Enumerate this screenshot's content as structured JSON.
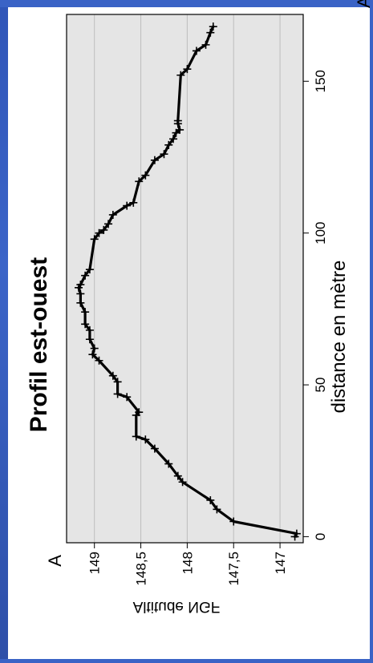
{
  "chart_data": {
    "type": "line",
    "title": "Profil est-ouest",
    "xlabel": "distance en mètre",
    "ylabel": "Altitude NGF",
    "start_label": "A",
    "end_label": "A'",
    "xlim": [
      -2,
      172
    ],
    "ylim": [
      146.75,
      149.3
    ],
    "xticks": [
      0,
      50,
      100,
      150
    ],
    "xtick_labels": [
      "0",
      "50",
      "100",
      "150"
    ],
    "yticks": [
      147,
      147.5,
      148,
      148.5,
      149
    ],
    "ytick_labels": [
      "147",
      "147,5",
      "148",
      "148,5",
      "149"
    ],
    "grid": true,
    "background": "#e5e5e5",
    "line_color": "#000000",
    "marker": "cross",
    "series": [
      {
        "x": [
          0,
          1,
          5,
          9,
          12,
          18,
          20,
          24,
          29,
          32,
          33,
          40,
          41,
          46,
          47,
          51,
          53,
          58,
          60,
          62,
          65,
          68,
          70,
          74,
          77,
          80,
          82,
          83,
          86,
          88,
          98,
          100,
          101,
          103,
          106,
          109,
          110,
          117,
          119,
          124,
          126,
          129,
          131,
          133,
          134,
          136,
          137,
          152,
          154,
          160,
          162,
          166,
          168
        ],
        "y": [
          146.84,
          146.82,
          147.5,
          147.68,
          147.75,
          148.05,
          148.1,
          148.2,
          148.35,
          148.45,
          148.55,
          148.55,
          148.52,
          148.65,
          148.75,
          148.75,
          148.8,
          148.95,
          149.02,
          149.0,
          149.05,
          149.05,
          149.1,
          149.1,
          149.15,
          149.15,
          149.17,
          149.15,
          149.1,
          149.05,
          149.0,
          148.95,
          148.9,
          148.85,
          148.8,
          148.65,
          148.58,
          148.52,
          148.45,
          148.35,
          148.25,
          148.2,
          148.15,
          148.12,
          148.08,
          148.1,
          148.1,
          148.07,
          148.0,
          147.9,
          147.8,
          147.75,
          147.72
        ]
      }
    ]
  }
}
